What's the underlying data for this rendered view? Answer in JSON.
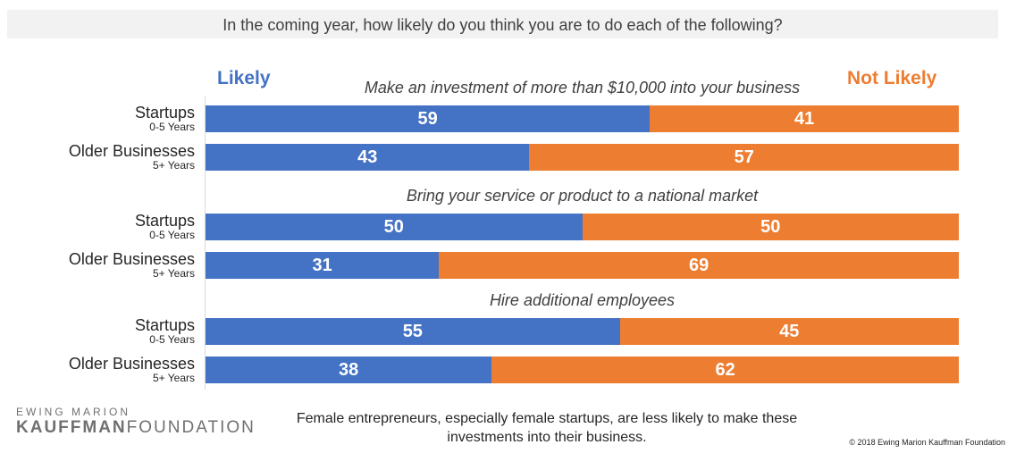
{
  "title": "In the coming year, how likely do you think you are to do each of the following?",
  "legend": {
    "likely": "Likely",
    "not_likely": "Not Likely"
  },
  "colors": {
    "likely": "#4472c4",
    "not_likely": "#ed7d31"
  },
  "chart_data": {
    "type": "bar",
    "orientation": "horizontal",
    "stacked": true,
    "legend_placement": "top",
    "sections": [
      {
        "title": "Make an investment of more than $10,000 into your business",
        "rows": [
          {
            "label": "Startups",
            "sublabel": "0-5 Years",
            "likely": 59,
            "not_likely": 41
          },
          {
            "label": "Older Businesses",
            "sublabel": "5+ Years",
            "likely": 43,
            "not_likely": 57
          }
        ]
      },
      {
        "title": "Bring your service or product to a national market",
        "rows": [
          {
            "label": "Startups",
            "sublabel": "0-5 Years",
            "likely": 50,
            "not_likely": 50
          },
          {
            "label": "Older Businesses",
            "sublabel": "5+ Years",
            "likely": 31,
            "not_likely": 69
          }
        ]
      },
      {
        "title": "Hire additional employees",
        "rows": [
          {
            "label": "Startups",
            "sublabel": "0-5 Years",
            "likely": 55,
            "not_likely": 45
          },
          {
            "label": "Older Businesses",
            "sublabel": "5+ Years",
            "likely": 38,
            "not_likely": 62
          }
        ]
      }
    ]
  },
  "logo": {
    "top": "EWING MARION",
    "bold": "KAUFFMAN",
    "rest": "FOUNDATION"
  },
  "footnote": "Female entrepreneurs, especially female startups, are less likely to make these investments into their business.",
  "copyright": "© 2018 Ewing Marion Kauffman Foundation"
}
